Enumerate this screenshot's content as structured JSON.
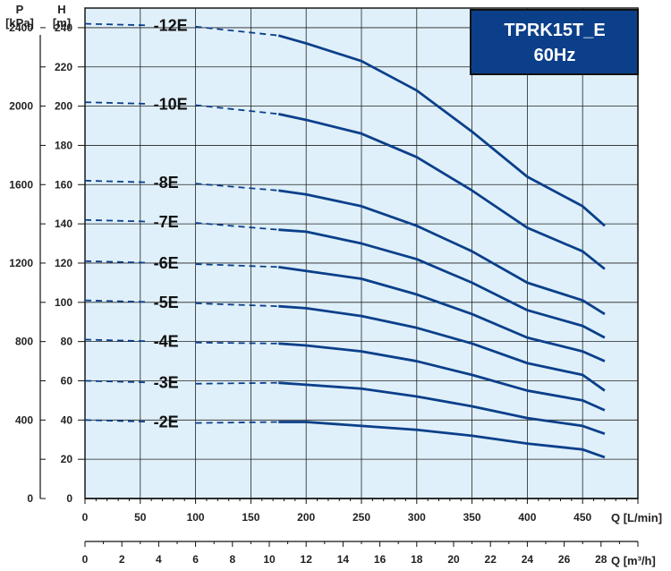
{
  "chart_data": {
    "type": "line",
    "title_lines": [
      "TPRK15T_E",
      "60Hz"
    ],
    "y_left_outer": {
      "symbol": "P",
      "unit": "[kPa]",
      "ticks": [
        0,
        400,
        800,
        1200,
        1600,
        2000,
        2400
      ]
    },
    "y_left_inner": {
      "symbol": "H",
      "unit": "[m]",
      "ticks": [
        0,
        20,
        40,
        60,
        80,
        100,
        120,
        140,
        160,
        180,
        200,
        220,
        240
      ]
    },
    "x_top": {
      "label": "Q [L/min]",
      "ticks": [
        0,
        50,
        100,
        150,
        200,
        250,
        300,
        350,
        400,
        450
      ],
      "range": [
        0,
        500
      ]
    },
    "x_bottom": {
      "label": "Q [m³/h]",
      "ticks": [
        0,
        2,
        4,
        6,
        8,
        10,
        12,
        14,
        16,
        18,
        20,
        22,
        24,
        26,
        28
      ],
      "range": [
        0,
        30
      ]
    },
    "ylim": [
      0,
      250
    ],
    "grid": true,
    "series": [
      {
        "name": "-12E",
        "dashed_x": [
          0,
          175
        ],
        "solid": [
          [
            175,
            236
          ],
          [
            200,
            232
          ],
          [
            250,
            223
          ],
          [
            300,
            208
          ],
          [
            350,
            187
          ],
          [
            400,
            164
          ],
          [
            450,
            149
          ],
          [
            470,
            139
          ]
        ],
        "dashed_y0": 242
      },
      {
        "name": "-10E",
        "dashed_x": [
          0,
          175
        ],
        "solid": [
          [
            175,
            196
          ],
          [
            200,
            193
          ],
          [
            250,
            186
          ],
          [
            300,
            174
          ],
          [
            350,
            157
          ],
          [
            400,
            138
          ],
          [
            450,
            126
          ],
          [
            470,
            117
          ]
        ],
        "dashed_y0": 202
      },
      {
        "name": "-8E",
        "dashed_x": [
          0,
          175
        ],
        "solid": [
          [
            175,
            157
          ],
          [
            200,
            155
          ],
          [
            250,
            149
          ],
          [
            300,
            139
          ],
          [
            350,
            126
          ],
          [
            400,
            110
          ],
          [
            450,
            101
          ],
          [
            470,
            94
          ]
        ],
        "dashed_y0": 162
      },
      {
        "name": "-7E",
        "dashed_x": [
          0,
          175
        ],
        "solid": [
          [
            175,
            137
          ],
          [
            200,
            136
          ],
          [
            250,
            130
          ],
          [
            300,
            122
          ],
          [
            350,
            110
          ],
          [
            400,
            96
          ],
          [
            450,
            88
          ],
          [
            470,
            82
          ]
        ],
        "dashed_y0": 142
      },
      {
        "name": "-6E",
        "dashed_x": [
          0,
          175
        ],
        "solid": [
          [
            175,
            118
          ],
          [
            200,
            116
          ],
          [
            250,
            112
          ],
          [
            300,
            104
          ],
          [
            350,
            94
          ],
          [
            400,
            82
          ],
          [
            450,
            75
          ],
          [
            470,
            70
          ]
        ],
        "dashed_y0": 121
      },
      {
        "name": "-5E",
        "dashed_x": [
          0,
          175
        ],
        "solid": [
          [
            175,
            98
          ],
          [
            200,
            97
          ],
          [
            250,
            93
          ],
          [
            300,
            87
          ],
          [
            350,
            79
          ],
          [
            400,
            69
          ],
          [
            450,
            63
          ],
          [
            470,
            55
          ]
        ],
        "dashed_y0": 101
      },
      {
        "name": "-4E",
        "dashed_x": [
          0,
          175
        ],
        "solid": [
          [
            175,
            79
          ],
          [
            200,
            78
          ],
          [
            250,
            75
          ],
          [
            300,
            70
          ],
          [
            350,
            63
          ],
          [
            400,
            55
          ],
          [
            450,
            50
          ],
          [
            470,
            45
          ]
        ],
        "dashed_y0": 81
      },
      {
        "name": "-3E",
        "dashed_x": [
          0,
          175
        ],
        "solid": [
          [
            175,
            59
          ],
          [
            200,
            58
          ],
          [
            250,
            56
          ],
          [
            300,
            52
          ],
          [
            350,
            47
          ],
          [
            400,
            41
          ],
          [
            450,
            37
          ],
          [
            470,
            33
          ]
        ],
        "dashed_y0": 60
      },
      {
        "name": "-2E",
        "dashed_x": [
          0,
          175
        ],
        "solid": [
          [
            175,
            39
          ],
          [
            200,
            39
          ],
          [
            250,
            37
          ],
          [
            300,
            35
          ],
          [
            350,
            32
          ],
          [
            400,
            28
          ],
          [
            450,
            25
          ],
          [
            470,
            21
          ]
        ],
        "dashed_y0": 40
      }
    ],
    "colors": {
      "plot_bg": "#dff0fa",
      "grid": "#222222",
      "curve": "#0b3f8a",
      "badge_bg": "#0b3f8a",
      "badge_border": "#111111"
    }
  }
}
